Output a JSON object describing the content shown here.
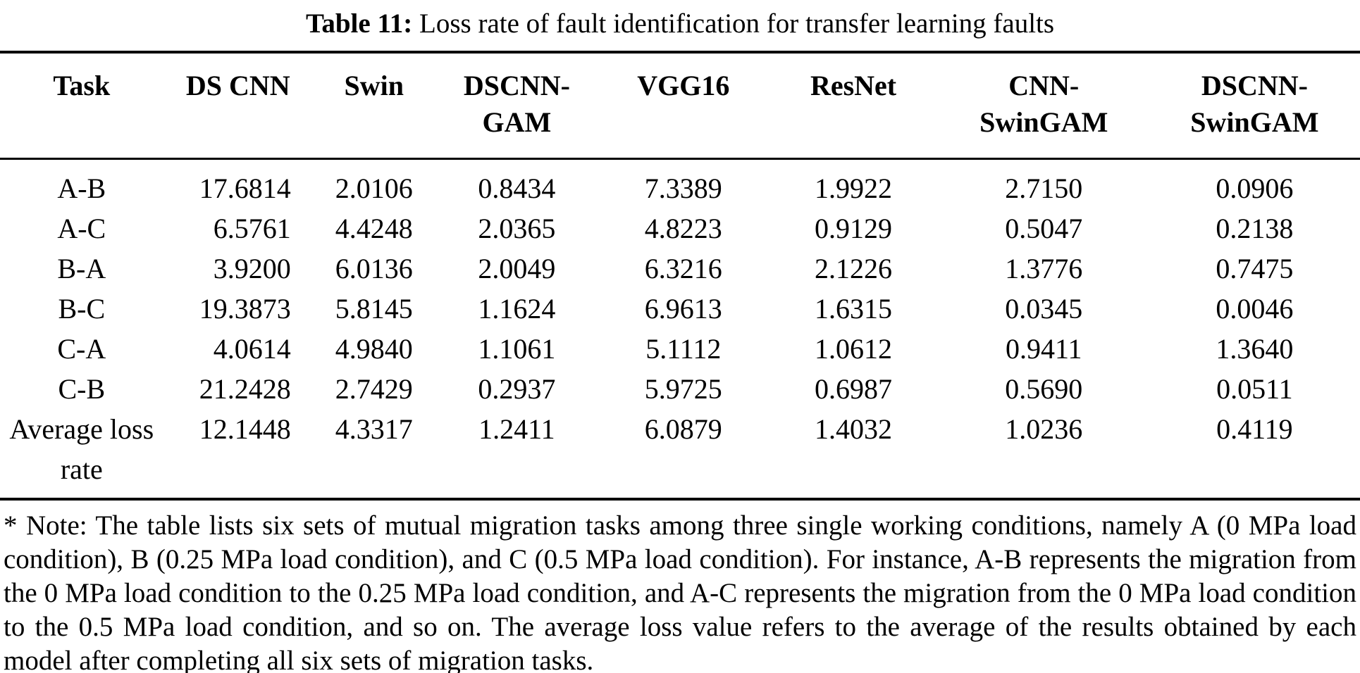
{
  "title": {
    "label": "Table 11:",
    "text": "Loss rate of fault identification for transfer learning faults"
  },
  "table": {
    "columns": [
      {
        "line1": "Task",
        "line2": ""
      },
      {
        "line1": "DS CNN",
        "line2": ""
      },
      {
        "line1": "Swin",
        "line2": ""
      },
      {
        "line1": "DSCNN-",
        "line2": "GAM"
      },
      {
        "line1": "VGG16",
        "line2": ""
      },
      {
        "line1": "ResNet",
        "line2": ""
      },
      {
        "line1": "CNN-",
        "line2": "SwinGAM"
      },
      {
        "line1": "DSCNN-",
        "line2": "SwinGAM"
      }
    ],
    "rows": [
      {
        "task": "A-B",
        "values": [
          "17.6814",
          "2.0106",
          "0.8434",
          "7.3389",
          "1.9922",
          "2.7150",
          "0.0906"
        ]
      },
      {
        "task": "A-C",
        "values": [
          "6.5761",
          "4.4248",
          "2.0365",
          "4.8223",
          "0.9129",
          "0.5047",
          "0.2138"
        ]
      },
      {
        "task": "B-A",
        "values": [
          "3.9200",
          "6.0136",
          "2.0049",
          "6.3216",
          "2.1226",
          "1.3776",
          "0.7475"
        ]
      },
      {
        "task": "B-C",
        "values": [
          "19.3873",
          "5.8145",
          "1.1624",
          "6.9613",
          "1.6315",
          "0.0345",
          "0.0046"
        ]
      },
      {
        "task": "C-A",
        "values": [
          "4.0614",
          "4.9840",
          "1.1061",
          "5.1112",
          "1.0612",
          "0.9411",
          "1.3640"
        ]
      },
      {
        "task": "C-B",
        "values": [
          "21.2428",
          "2.7429",
          "0.2937",
          "5.9725",
          "0.6987",
          "0.5690",
          "0.0511"
        ]
      },
      {
        "task": "Average loss rate",
        "values": [
          "12.1448",
          "4.3317",
          "1.2411",
          "6.0879",
          "1.4032",
          "1.0236",
          "0.4119"
        ]
      }
    ]
  },
  "note": "* Note: The table lists six sets of mutual migration tasks among three single working conditions, namely A (0 MPa load condition), B (0.25 MPa load condition), and C (0.5 MPa load condition). For instance, A-B represents the migration from the 0 MPa load condition to the 0.25 MPa load condition, and A-C represents the migration from the 0 MPa load condition to the 0.5 MPa load condition, and so on. The average loss value refers to the average of the results obtained by each model after completing all six sets of migration tasks.",
  "colors": {
    "text": "#000000",
    "background": "#ffffff",
    "rule": "#000000"
  }
}
